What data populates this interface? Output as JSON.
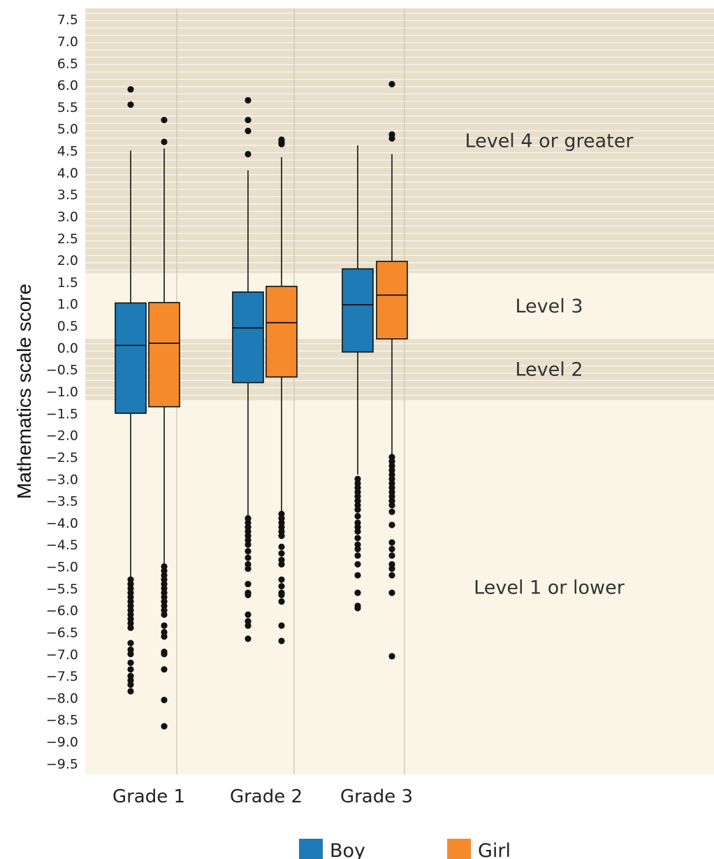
{
  "chart_data": {
    "type": "boxplot",
    "ylabel": "Mathematics scale score",
    "ylim": [
      -9.75,
      7.75
    ],
    "yticks": [
      7.5,
      7.0,
      6.5,
      6.0,
      5.5,
      5.0,
      4.5,
      4.0,
      3.5,
      3.0,
      2.5,
      2.0,
      1.5,
      1.0,
      0.5,
      0.0,
      -0.5,
      -1.0,
      -1.5,
      -2.0,
      -2.5,
      -3.0,
      -3.5,
      -4.0,
      -4.5,
      -5.0,
      -5.5,
      -6.0,
      -6.5,
      -7.0,
      -7.5,
      -8.0,
      -8.5,
      -9.0,
      -9.5
    ],
    "ytick_labels": [
      "7.5",
      "7.0",
      "6.5",
      "6.0",
      "5.5",
      "5.0",
      "4.5",
      "4.0",
      "3.5",
      "3.0",
      "2.5",
      "2.0",
      "1.5",
      "1.0",
      "0.5",
      "0.0",
      "−0.5",
      "−1.0",
      "−1.5",
      "−2.0",
      "−2.5",
      "−3.0",
      "−3.5",
      "−4.0",
      "−4.5",
      "−5.0",
      "−5.5",
      "−6.0",
      "−6.5",
      "−7.0",
      "−7.5",
      "−8.0",
      "−8.5",
      "−9.0",
      "−9.5"
    ],
    "categories": [
      "Grade 1",
      "Grade 2",
      "Grade 3"
    ],
    "legend": {
      "position": "bottom"
    },
    "bands": [
      {
        "label": "Level 4 or greater",
        "from": 1.7,
        "to": 7.75,
        "color": "#e8dfcb",
        "striped": true
      },
      {
        "label": "Level 3",
        "from": 0.2,
        "to": 1.7,
        "color": "#faf5e6",
        "striped": false
      },
      {
        "label": "Level 2",
        "from": -1.2,
        "to": 0.2,
        "color": "#e8dfcb",
        "striped": true
      },
      {
        "label": "Level 1 or lower",
        "from": -9.75,
        "to": -1.2,
        "color": "#faf5e6",
        "striped": false
      }
    ],
    "series": [
      {
        "name": "Boy",
        "color": "#1f7bb6",
        "boxes": [
          {
            "q1": -1.5,
            "median": 0.05,
            "q3": 1.02,
            "whisker_low": -5.25,
            "whisker_high": 4.5,
            "outliers": [
              5.9,
              5.55,
              -5.3,
              -5.4,
              -5.5,
              -5.6,
              -5.7,
              -5.8,
              -5.9,
              -6.0,
              -6.1,
              -6.2,
              -6.3,
              -6.4,
              -6.75,
              -6.9,
              -7.0,
              -7.2,
              -7.35,
              -7.5,
              -7.6,
              -7.7,
              -7.85
            ]
          },
          {
            "q1": -0.8,
            "median": 0.45,
            "q3": 1.27,
            "whisker_low": -3.85,
            "whisker_high": 4.05,
            "outliers": [
              5.65,
              5.2,
              4.95,
              4.42,
              -3.9,
              -4.0,
              -4.1,
              -4.2,
              -4.3,
              -4.4,
              -4.5,
              -4.65,
              -4.8,
              -4.95,
              -5.05,
              -5.4,
              -5.6,
              -5.65,
              -6.1,
              -6.25,
              -6.35,
              -6.65
            ]
          },
          {
            "q1": -0.1,
            "median": 0.98,
            "q3": 1.8,
            "whisker_low": -2.9,
            "whisker_high": 4.62,
            "outliers": [
              -3.0,
              -3.1,
              -3.2,
              -3.3,
              -3.4,
              -3.5,
              -3.6,
              -3.7,
              -3.85,
              -4.0,
              -4.1,
              -4.2,
              -4.35,
              -4.5,
              -4.6,
              -4.75,
              -4.95,
              -5.2,
              -5.6,
              -5.9,
              -5.95
            ]
          }
        ]
      },
      {
        "name": "Girl",
        "color": "#f58a2c",
        "boxes": [
          {
            "q1": -1.35,
            "median": 0.1,
            "q3": 1.03,
            "whisker_low": -4.95,
            "whisker_high": 4.55,
            "outliers": [
              5.2,
              4.7,
              -5.0,
              -5.1,
              -5.2,
              -5.3,
              -5.4,
              -5.5,
              -5.6,
              -5.7,
              -5.8,
              -5.9,
              -6.0,
              -6.1,
              -6.35,
              -6.5,
              -6.6,
              -6.95,
              -7.0,
              -7.35,
              -8.05,
              -8.65
            ]
          },
          {
            "q1": -0.67,
            "median": 0.57,
            "q3": 1.4,
            "whisker_low": -3.75,
            "whisker_high": 4.35,
            "outliers": [
              4.75,
              4.7,
              4.65,
              -3.8,
              -3.9,
              -4.0,
              -4.1,
              -4.2,
              -4.3,
              -4.55,
              -4.7,
              -4.85,
              -4.95,
              -5.3,
              -5.45,
              -5.6,
              -5.65,
              -5.8,
              -6.35,
              -6.7
            ]
          },
          {
            "q1": 0.2,
            "median": 1.2,
            "q3": 1.97,
            "whisker_low": -2.45,
            "whisker_high": 4.42,
            "outliers": [
              6.02,
              4.87,
              4.78,
              -2.5,
              -2.6,
              -2.7,
              -2.8,
              -2.9,
              -3.0,
              -3.1,
              -3.2,
              -3.3,
              -3.4,
              -3.5,
              -3.6,
              -3.75,
              -4.05,
              -4.45,
              -4.6,
              -4.75,
              -4.95,
              -5.05,
              -5.2,
              -5.6,
              -7.05
            ]
          }
        ]
      }
    ]
  }
}
